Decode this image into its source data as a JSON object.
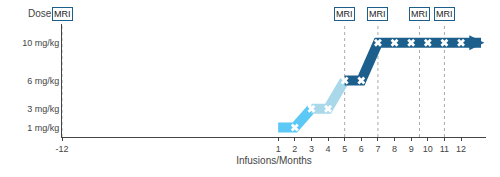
{
  "chart_data": {
    "type": "line",
    "xlabel": "Infusions/Months",
    "ylabel": "Dose",
    "xlim": [
      -12,
      13.5
    ],
    "xticks": [
      -12,
      1,
      2,
      3,
      4,
      5,
      6,
      7,
      8,
      9,
      10,
      11,
      12
    ],
    "ylim": [
      0,
      12
    ],
    "yticks": [
      {
        "value": 1,
        "label": "1 mg/kg"
      },
      {
        "value": 3,
        "label": "3 mg/kg"
      },
      {
        "value": 6,
        "label": "6 mg/kg"
      },
      {
        "value": 10,
        "label": "10 mg/kg"
      }
    ],
    "grid": false,
    "series": [
      {
        "type": "line",
        "x": [
          1,
          2,
          3
        ],
        "values": [
          1,
          1,
          3
        ],
        "color": "#5bc8f5"
      },
      {
        "type": "line",
        "x": [
          3,
          4,
          5
        ],
        "values": [
          3,
          3,
          6
        ],
        "color": "#a8d8ea"
      },
      {
        "type": "line",
        "x": [
          5,
          6,
          7,
          13.2
        ],
        "values": [
          6,
          6,
          10,
          10
        ],
        "color": "#1c5f8c"
      },
      {
        "type": "scatter",
        "marker": "x",
        "x": [
          2,
          3,
          4,
          5,
          6
        ],
        "values": [
          1,
          3,
          3,
          6,
          6
        ],
        "color": "white"
      },
      {
        "type": "scatter",
        "marker": "x",
        "x": [
          7,
          8,
          9,
          10,
          11,
          12
        ],
        "values": [
          10,
          10,
          10,
          10,
          10,
          10
        ],
        "color": "white"
      }
    ],
    "arrow": {
      "x": [
        12.8,
        13.4
      ],
      "y": [
        10,
        10
      ],
      "color": "#1c5f8c"
    },
    "vlines": {
      "x": [
        -12,
        5,
        7,
        9.5,
        11
      ],
      "color": "#aaaaaa",
      "line_style": "dotted"
    },
    "annotations": [
      {
        "x": -12,
        "text": "MRI"
      },
      {
        "x": 5,
        "text": "MRI"
      },
      {
        "x": 7,
        "text": "MRI"
      },
      {
        "x": 9.5,
        "text": "MRI"
      },
      {
        "x": 11,
        "text": "MRI"
      }
    ],
    "box_color": "#1c5f8c",
    "background_color": "white"
  }
}
